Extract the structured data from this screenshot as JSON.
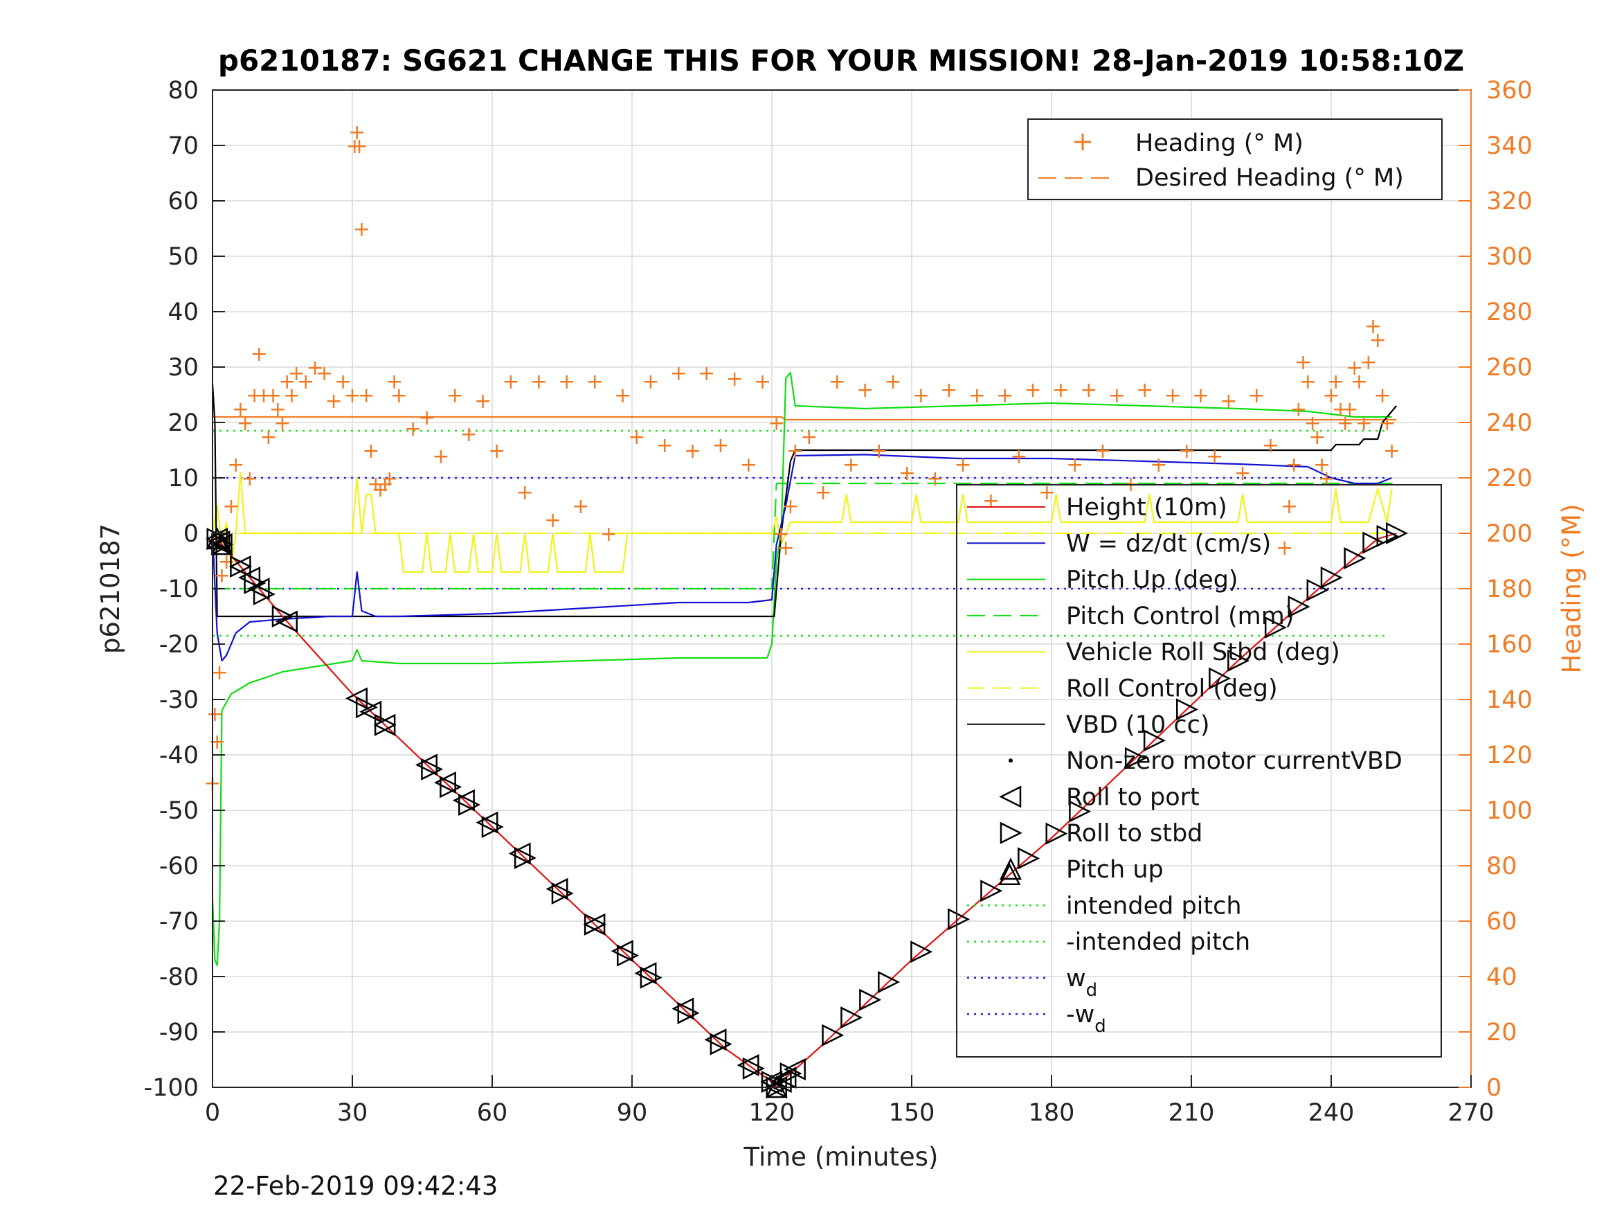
{
  "chart_data": {
    "type": "line",
    "title": "p6210187: SG621 CHANGE THIS FOR YOUR MISSION! 28-Jan-2019 10:58:10Z",
    "xlabel": "Time (minutes)",
    "ylabel": "p6210187",
    "y2label": "Heading (°M)",
    "footer": "22-Feb-2019 09:42:43",
    "xlim": [
      0,
      270
    ],
    "ylim": [
      -100,
      80
    ],
    "y2lim": [
      0,
      360
    ],
    "xticks": [
      0,
      30,
      60,
      90,
      120,
      150,
      180,
      210,
      240,
      270
    ],
    "yticks": [
      -100,
      -90,
      -80,
      -70,
      -60,
      -50,
      -40,
      -30,
      -20,
      -10,
      0,
      10,
      20,
      30,
      40,
      50,
      60,
      70,
      80
    ],
    "y2ticks": [
      0,
      20,
      40,
      60,
      80,
      100,
      120,
      140,
      160,
      180,
      200,
      220,
      240,
      260,
      280,
      300,
      320,
      340,
      360
    ],
    "grid": true,
    "colors": {
      "heading": "#f07b24",
      "height": "#e01010",
      "w": "#1010d0",
      "pitch": "#10dd10",
      "roll": "#f2f21a",
      "vbd": "#000000",
      "intended": "#20e020",
      "wd": "#2020e0"
    },
    "legend_heading": {
      "position": "top-right",
      "entries": [
        "Heading (° M)",
        "Desired Heading (° M)"
      ]
    },
    "legend_main": {
      "position": "right",
      "entries": [
        "Height (10m)",
        "W = dz/dt (cm/s)",
        "Pitch Up (deg)",
        "Pitch Control (mm)",
        "Vehicle Roll Stbd (deg)",
        "Roll Control (deg)",
        "VBD (10 cc)",
        "Non-zero motor currentVBD",
        "Roll to port",
        "Roll to stbd",
        "Pitch up",
        "intended pitch",
        "-intended pitch",
        "w",
        "-w"
      ],
      "subscript": "d"
    },
    "series": [
      {
        "name": "Height (10m)",
        "axis": "left",
        "x": [
          0,
          1,
          2,
          5,
          15,
          30,
          60,
          90,
          110,
          120,
          121,
          122,
          130,
          150,
          180,
          200,
          220,
          240,
          250,
          254
        ],
        "y": [
          0,
          -1,
          -2,
          -5,
          -15,
          -29,
          -53,
          -77,
          -93,
          -99,
          -100,
          -99,
          -93,
          -77,
          -55,
          -39,
          -23,
          -8,
          -1,
          0
        ]
      },
      {
        "name": "W = dz/dt (cm/s)",
        "axis": "left",
        "x": [
          0,
          1,
          2,
          3,
          5,
          8,
          15,
          25,
          30,
          31,
          32,
          35,
          40,
          60,
          80,
          100,
          115,
          120,
          121,
          123,
          125,
          140,
          160,
          180,
          200,
          220,
          235,
          240,
          245,
          250,
          253
        ],
        "y": [
          0,
          -18,
          -23,
          -22,
          -18,
          -16,
          -15.5,
          -15,
          -15,
          -7,
          -14,
          -15,
          -15,
          -14.5,
          -13.5,
          -12.5,
          -12.5,
          -12,
          -2,
          5,
          14,
          14.2,
          13.5,
          13.5,
          13,
          12.5,
          12,
          10,
          9,
          9,
          10
        ]
      },
      {
        "name": "Pitch Up (deg)",
        "axis": "left",
        "x": [
          0,
          0.5,
          1,
          1.5,
          2,
          4,
          8,
          15,
          30,
          31,
          32,
          40,
          60,
          80,
          100,
          119,
          120,
          121,
          122,
          123,
          124,
          125,
          140,
          160,
          180,
          200,
          220,
          235,
          245,
          250,
          253
        ],
        "y": [
          -66,
          -77,
          -78,
          -70,
          -32,
          -29,
          -27,
          -25,
          -23,
          -21,
          -23,
          -23.5,
          -23.5,
          -23,
          -22.5,
          -22.5,
          -20,
          -5,
          0,
          28,
          29,
          23,
          22.5,
          23,
          23.5,
          23,
          22.5,
          22,
          21,
          21,
          21
        ]
      },
      {
        "name": "Pitch Control (mm)",
        "axis": "left",
        "dash": "26 12",
        "x": [
          0,
          1,
          2,
          120,
          121,
          254
        ],
        "y": [
          -10,
          -10,
          -10,
          -10,
          9,
          9
        ]
      },
      {
        "name": "Vehicle Roll Stbd (deg)",
        "axis": "left",
        "x": [
          0,
          1,
          2,
          3,
          4,
          5,
          6,
          7,
          8,
          10,
          15,
          20,
          25,
          30,
          31,
          32,
          33,
          34,
          35,
          36,
          37,
          38,
          39,
          40,
          41,
          45,
          46,
          47,
          50,
          51,
          52,
          55,
          56,
          57,
          60,
          61,
          62,
          66,
          67,
          68,
          72,
          73,
          74,
          80,
          81,
          82,
          88,
          89,
          90,
          95,
          96,
          97,
          105,
          106,
          107,
          115,
          120,
          121,
          122,
          123,
          124,
          125,
          130,
          135,
          136,
          137,
          140,
          150,
          151,
          152,
          160,
          161,
          162,
          170,
          180,
          181,
          182,
          190,
          200,
          201,
          202,
          210,
          220,
          221,
          222,
          230,
          240,
          241,
          242,
          248,
          250,
          252,
          253
        ],
        "y": [
          0,
          5,
          -2,
          2,
          -6,
          0,
          11,
          0,
          0,
          0,
          0,
          0,
          0,
          0,
          10,
          0,
          7,
          7,
          0,
          0,
          0,
          0,
          0,
          0,
          -7,
          -7,
          0,
          -7,
          -7,
          0,
          -7,
          -7,
          0,
          -7,
          -7,
          0,
          -7,
          -7,
          0,
          -7,
          -7,
          0,
          -7,
          -7,
          0,
          -7,
          -7,
          0,
          0,
          0,
          0,
          0,
          0,
          0,
          0,
          0,
          0,
          3,
          -2,
          0,
          2,
          2,
          2,
          2,
          7,
          2,
          2,
          2,
          7,
          2,
          2,
          7,
          2,
          2,
          2,
          7,
          2,
          2,
          2,
          7,
          2,
          2,
          2,
          7,
          2,
          2,
          2,
          8,
          2,
          2,
          8,
          2,
          8
        ]
      },
      {
        "name": "Roll Control (deg)",
        "axis": "left",
        "dash": "26 12",
        "x": [
          0,
          2,
          120,
          121,
          254
        ],
        "y": [
          0,
          0,
          0,
          0,
          0
        ]
      },
      {
        "name": "VBD (10 cc)",
        "axis": "left",
        "x": [
          0,
          0.5,
          1,
          2,
          120,
          120.5,
          122,
          124,
          125,
          240,
          241,
          246,
          247,
          250,
          251,
          253,
          254
        ],
        "y": [
          27,
          20,
          -15,
          -15,
          -15,
          -15,
          0,
          13,
          15,
          15,
          16,
          16,
          17,
          17,
          20,
          22,
          23
        ]
      },
      {
        "name": "intended pitch",
        "axis": "left",
        "dotted": true,
        "x": [
          0,
          252
        ],
        "y": [
          18.5,
          18.5
        ]
      },
      {
        "name": "-intended pitch",
        "axis": "left",
        "dotted": true,
        "x": [
          0,
          252
        ],
        "y": [
          -18.5,
          -18.5
        ]
      },
      {
        "name": "w_d",
        "axis": "left",
        "dotted": true,
        "x": [
          0,
          252
        ],
        "y": [
          10,
          10
        ]
      },
      {
        "name": "-w_d",
        "axis": "left",
        "dotted": true,
        "x": [
          0,
          252
        ],
        "y": [
          -10,
          -10
        ]
      },
      {
        "name": "Desired Heading (° M)",
        "axis": "right",
        "x": [
          0,
          122,
          123,
          254
        ],
        "y": [
          242,
          242,
          241,
          241
        ]
      },
      {
        "name": "Heading (° M)",
        "axis": "right",
        "x": [
          0,
          0.5,
          1,
          1.5,
          2,
          3,
          4,
          5,
          6,
          7,
          8,
          9,
          10,
          11,
          12,
          13,
          14,
          15,
          16,
          17,
          18,
          20,
          22,
          24,
          26,
          28,
          30,
          30.5,
          31,
          31.5,
          32,
          33,
          34,
          35,
          36,
          37,
          38,
          39,
          40,
          43,
          46,
          49,
          52,
          55,
          58,
          61,
          64,
          67,
          70,
          73,
          76,
          79,
          82,
          85,
          88,
          91,
          94,
          97,
          100,
          103,
          106,
          109,
          112,
          115,
          118,
          121,
          122,
          123,
          124,
          125,
          128,
          131,
          134,
          137,
          140,
          143,
          146,
          149,
          152,
          155,
          158,
          161,
          164,
          167,
          170,
          173,
          176,
          179,
          182,
          185,
          188,
          191,
          194,
          197,
          200,
          203,
          206,
          209,
          212,
          215,
          218,
          221,
          224,
          227,
          230,
          231,
          232,
          233,
          234,
          235,
          236,
          237,
          238,
          239,
          240,
          241,
          242,
          243,
          244,
          245,
          246,
          247,
          248,
          249,
          250,
          251,
          252,
          253
        ],
        "y": [
          110,
          135,
          125,
          150,
          185,
          190,
          210,
          225,
          245,
          240,
          220,
          250,
          265,
          250,
          235,
          250,
          245,
          240,
          255,
          250,
          258,
          255,
          260,
          258,
          248,
          255,
          250,
          340,
          345,
          340,
          310,
          250,
          230,
          218,
          216,
          218,
          220,
          255,
          250,
          238,
          242,
          228,
          250,
          236,
          248,
          230,
          255,
          215,
          255,
          205,
          255,
          210,
          255,
          200,
          250,
          235,
          255,
          232,
          258,
          230,
          258,
          232,
          256,
          225,
          255,
          240,
          200,
          195,
          210,
          230,
          235,
          215,
          255,
          225,
          252,
          230,
          255,
          222,
          250,
          220,
          252,
          225,
          250,
          212,
          250,
          228,
          252,
          215,
          252,
          225,
          252,
          230,
          250,
          218,
          252,
          225,
          250,
          230,
          250,
          228,
          248,
          222,
          250,
          232,
          195,
          210,
          225,
          245,
          262,
          255,
          240,
          235,
          225,
          220,
          250,
          255,
          245,
          240,
          245,
          260,
          255,
          240,
          262,
          275,
          270,
          250,
          240,
          230
        ]
      }
    ],
    "markers": {
      "roll_to_port_x": [
        1,
        1.5,
        2,
        6,
        8,
        10,
        16,
        31,
        34,
        37,
        46,
        50,
        54,
        59,
        66,
        74,
        82,
        88,
        93,
        101,
        108,
        115,
        120,
        121,
        122,
        123,
        125
      ],
      "roll_to_stbd_x": [
        1,
        2,
        6,
        9,
        11,
        15,
        33,
        37,
        47,
        51,
        55,
        60,
        67,
        75,
        82,
        89,
        94,
        102,
        109,
        116,
        120,
        121,
        124,
        133,
        137,
        141,
        145,
        152,
        160,
        167,
        175,
        181,
        186,
        198,
        202,
        209,
        216,
        220,
        228,
        233,
        237,
        240,
        245,
        249,
        252,
        254
      ],
      "pitch_up_x": [
        1,
        2,
        121,
        171
      ]
    }
  }
}
